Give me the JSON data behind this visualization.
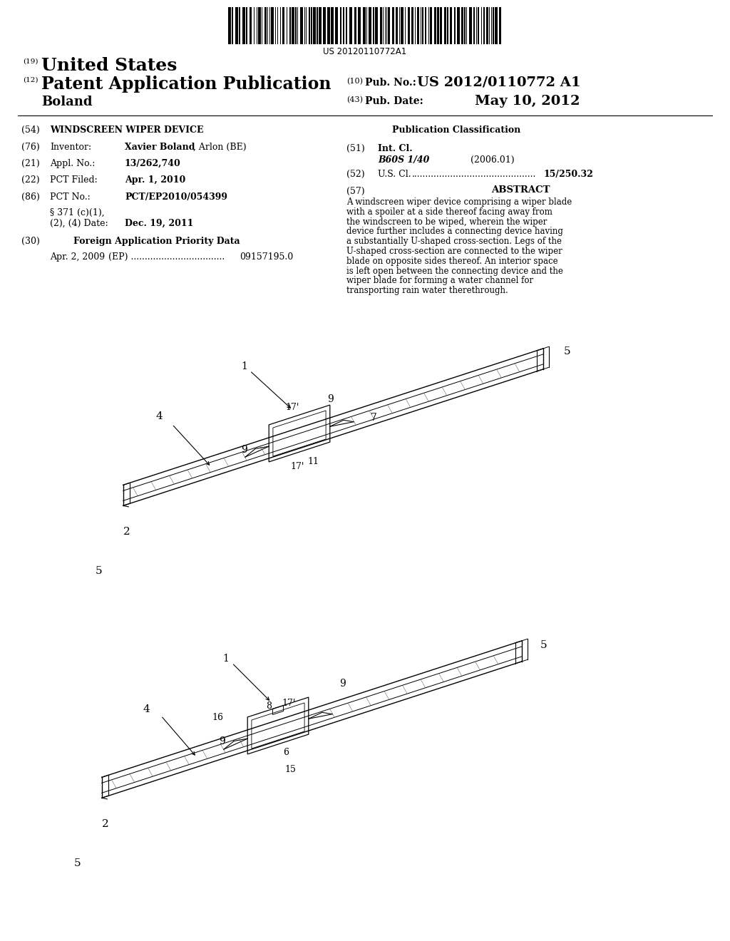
{
  "patent_number_barcode": "US 20120110772A1",
  "pub_number": "US 2012/0110772 A1",
  "pub_date": "May 10, 2012",
  "inventor_bold": "Xavier Boland",
  "inventor_rest": ", Arlon (BE)",
  "appl_no": "13/262,740",
  "pct_filed": "Apr. 1, 2010",
  "pct_no": "PCT/EP2010/054399",
  "date_371": "Dec. 19, 2011",
  "foreign_app_title": "Foreign Application Priority Data",
  "foreign_date": "Apr. 2, 2009",
  "foreign_ep_num": "09157195.0",
  "int_cl_code": "B60S 1/40",
  "int_cl_date": "(2006.01)",
  "us_cl_num": "15/250.32",
  "abstract_title": "ABSTRACT",
  "abstract_text": "A windscreen wiper device comprising a wiper blade with a spoiler at a side thereof facing away from the windscreen to be wiped, wherein the wiper device further includes a connecting device having a substantially U-shaped cross-section. Legs of the U-shaped cross-section are connected to the wiper blade on opposite sides thereof. An interior space is left open between the connecting device and the wiper blade for forming a water channel for transporting rain water therethrough.",
  "bg": "#ffffff",
  "fg": "#000000"
}
